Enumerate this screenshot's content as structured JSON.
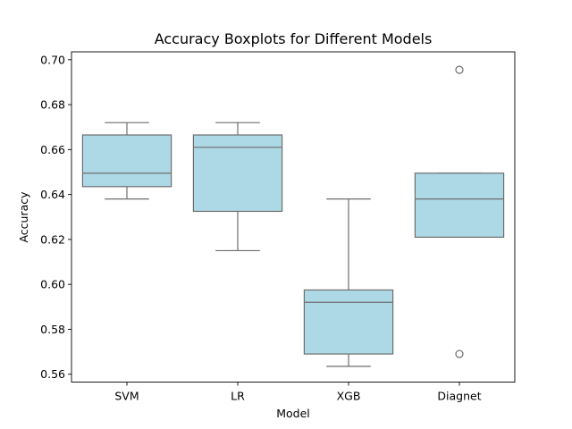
{
  "chart_data": {
    "type": "boxplot",
    "title": "Accuracy Boxplots for Different Models",
    "xlabel": "Model",
    "ylabel": "Accuracy",
    "ylim": [
      0.5565,
      0.7035
    ],
    "yticks": [
      0.56,
      0.58,
      0.6,
      0.62,
      0.64,
      0.66,
      0.68,
      0.7
    ],
    "ytick_labels": [
      "0.56",
      "0.58",
      "0.60",
      "0.62",
      "0.64",
      "0.66",
      "0.68",
      "0.70"
    ],
    "categories": [
      "SVM",
      "LR",
      "XGB",
      "Diagnet"
    ],
    "boxes": [
      {
        "whisker_low": 0.638,
        "q1": 0.6435,
        "median": 0.6495,
        "q3": 0.6665,
        "whisker_high": 0.672,
        "outliers": []
      },
      {
        "whisker_low": 0.615,
        "q1": 0.6325,
        "median": 0.661,
        "q3": 0.6665,
        "whisker_high": 0.672,
        "outliers": []
      },
      {
        "whisker_low": 0.5635,
        "q1": 0.569,
        "median": 0.592,
        "q3": 0.5975,
        "whisker_high": 0.638,
        "outliers": []
      },
      {
        "whisker_low": 0.621,
        "q1": 0.621,
        "median": 0.638,
        "q3": 0.6495,
        "whisker_high": 0.6495,
        "outliers": [
          0.569,
          0.6955
        ]
      }
    ],
    "grid": false,
    "legend": "none"
  },
  "colors": {
    "box_fill": "#add8e6",
    "box_line": "#6e6e6e",
    "axes": "#000000",
    "background": "#ffffff"
  }
}
